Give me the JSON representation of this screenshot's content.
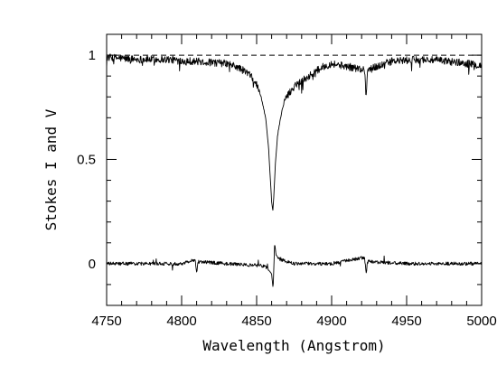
{
  "chart_data": {
    "type": "line",
    "title": "",
    "xlabel": "Wavelength (Angstrom)",
    "ylabel": "Stokes I and V",
    "xlim": [
      4750,
      5000
    ],
    "ylim": [
      -0.2,
      1.1
    ],
    "xticks": [
      4750,
      4800,
      4850,
      4900,
      4950,
      5000
    ],
    "yticks": [
      0,
      0.5,
      1
    ],
    "grid": false,
    "legend": "none",
    "reference_line": {
      "y": 1,
      "style": "dashed"
    },
    "series": [
      {
        "description": "Stokes I (normalized intensity) with H-beta absorption",
        "x": [
          4750,
          4770,
          4790,
          4810,
          4830,
          4838,
          4845,
          4850,
          4853,
          4856,
          4858,
          4859,
          4860,
          4860.8,
          4861.5,
          4862.5,
          4864,
          4867,
          4870,
          4876,
          4885,
          4893,
          4900,
          4922,
          4923,
          4924,
          4940,
          4960,
          4980,
          5000
        ],
        "values": [
          0.99,
          0.98,
          0.98,
          0.97,
          0.96,
          0.94,
          0.91,
          0.86,
          0.8,
          0.7,
          0.55,
          0.42,
          0.3,
          0.25,
          0.33,
          0.48,
          0.62,
          0.74,
          0.8,
          0.86,
          0.9,
          0.94,
          0.96,
          0.93,
          0.8,
          0.93,
          0.97,
          0.98,
          0.97,
          0.95
        ]
      },
      {
        "description": "Stokes V (circular polarization)",
        "x": [
          4750,
          4800,
          4809,
          4810,
          4811,
          4830,
          4855,
          4858,
          4860,
          4861,
          4862,
          4863,
          4866,
          4875,
          4900,
          4922,
          4923,
          4924,
          4950,
          5000
        ],
        "values": [
          0.0,
          0.0,
          0.02,
          -0.04,
          0.01,
          0.0,
          -0.01,
          -0.03,
          -0.05,
          -0.12,
          0.1,
          0.04,
          0.02,
          0.0,
          0.0,
          0.03,
          -0.05,
          0.01,
          0.0,
          0.0
        ]
      }
    ]
  }
}
